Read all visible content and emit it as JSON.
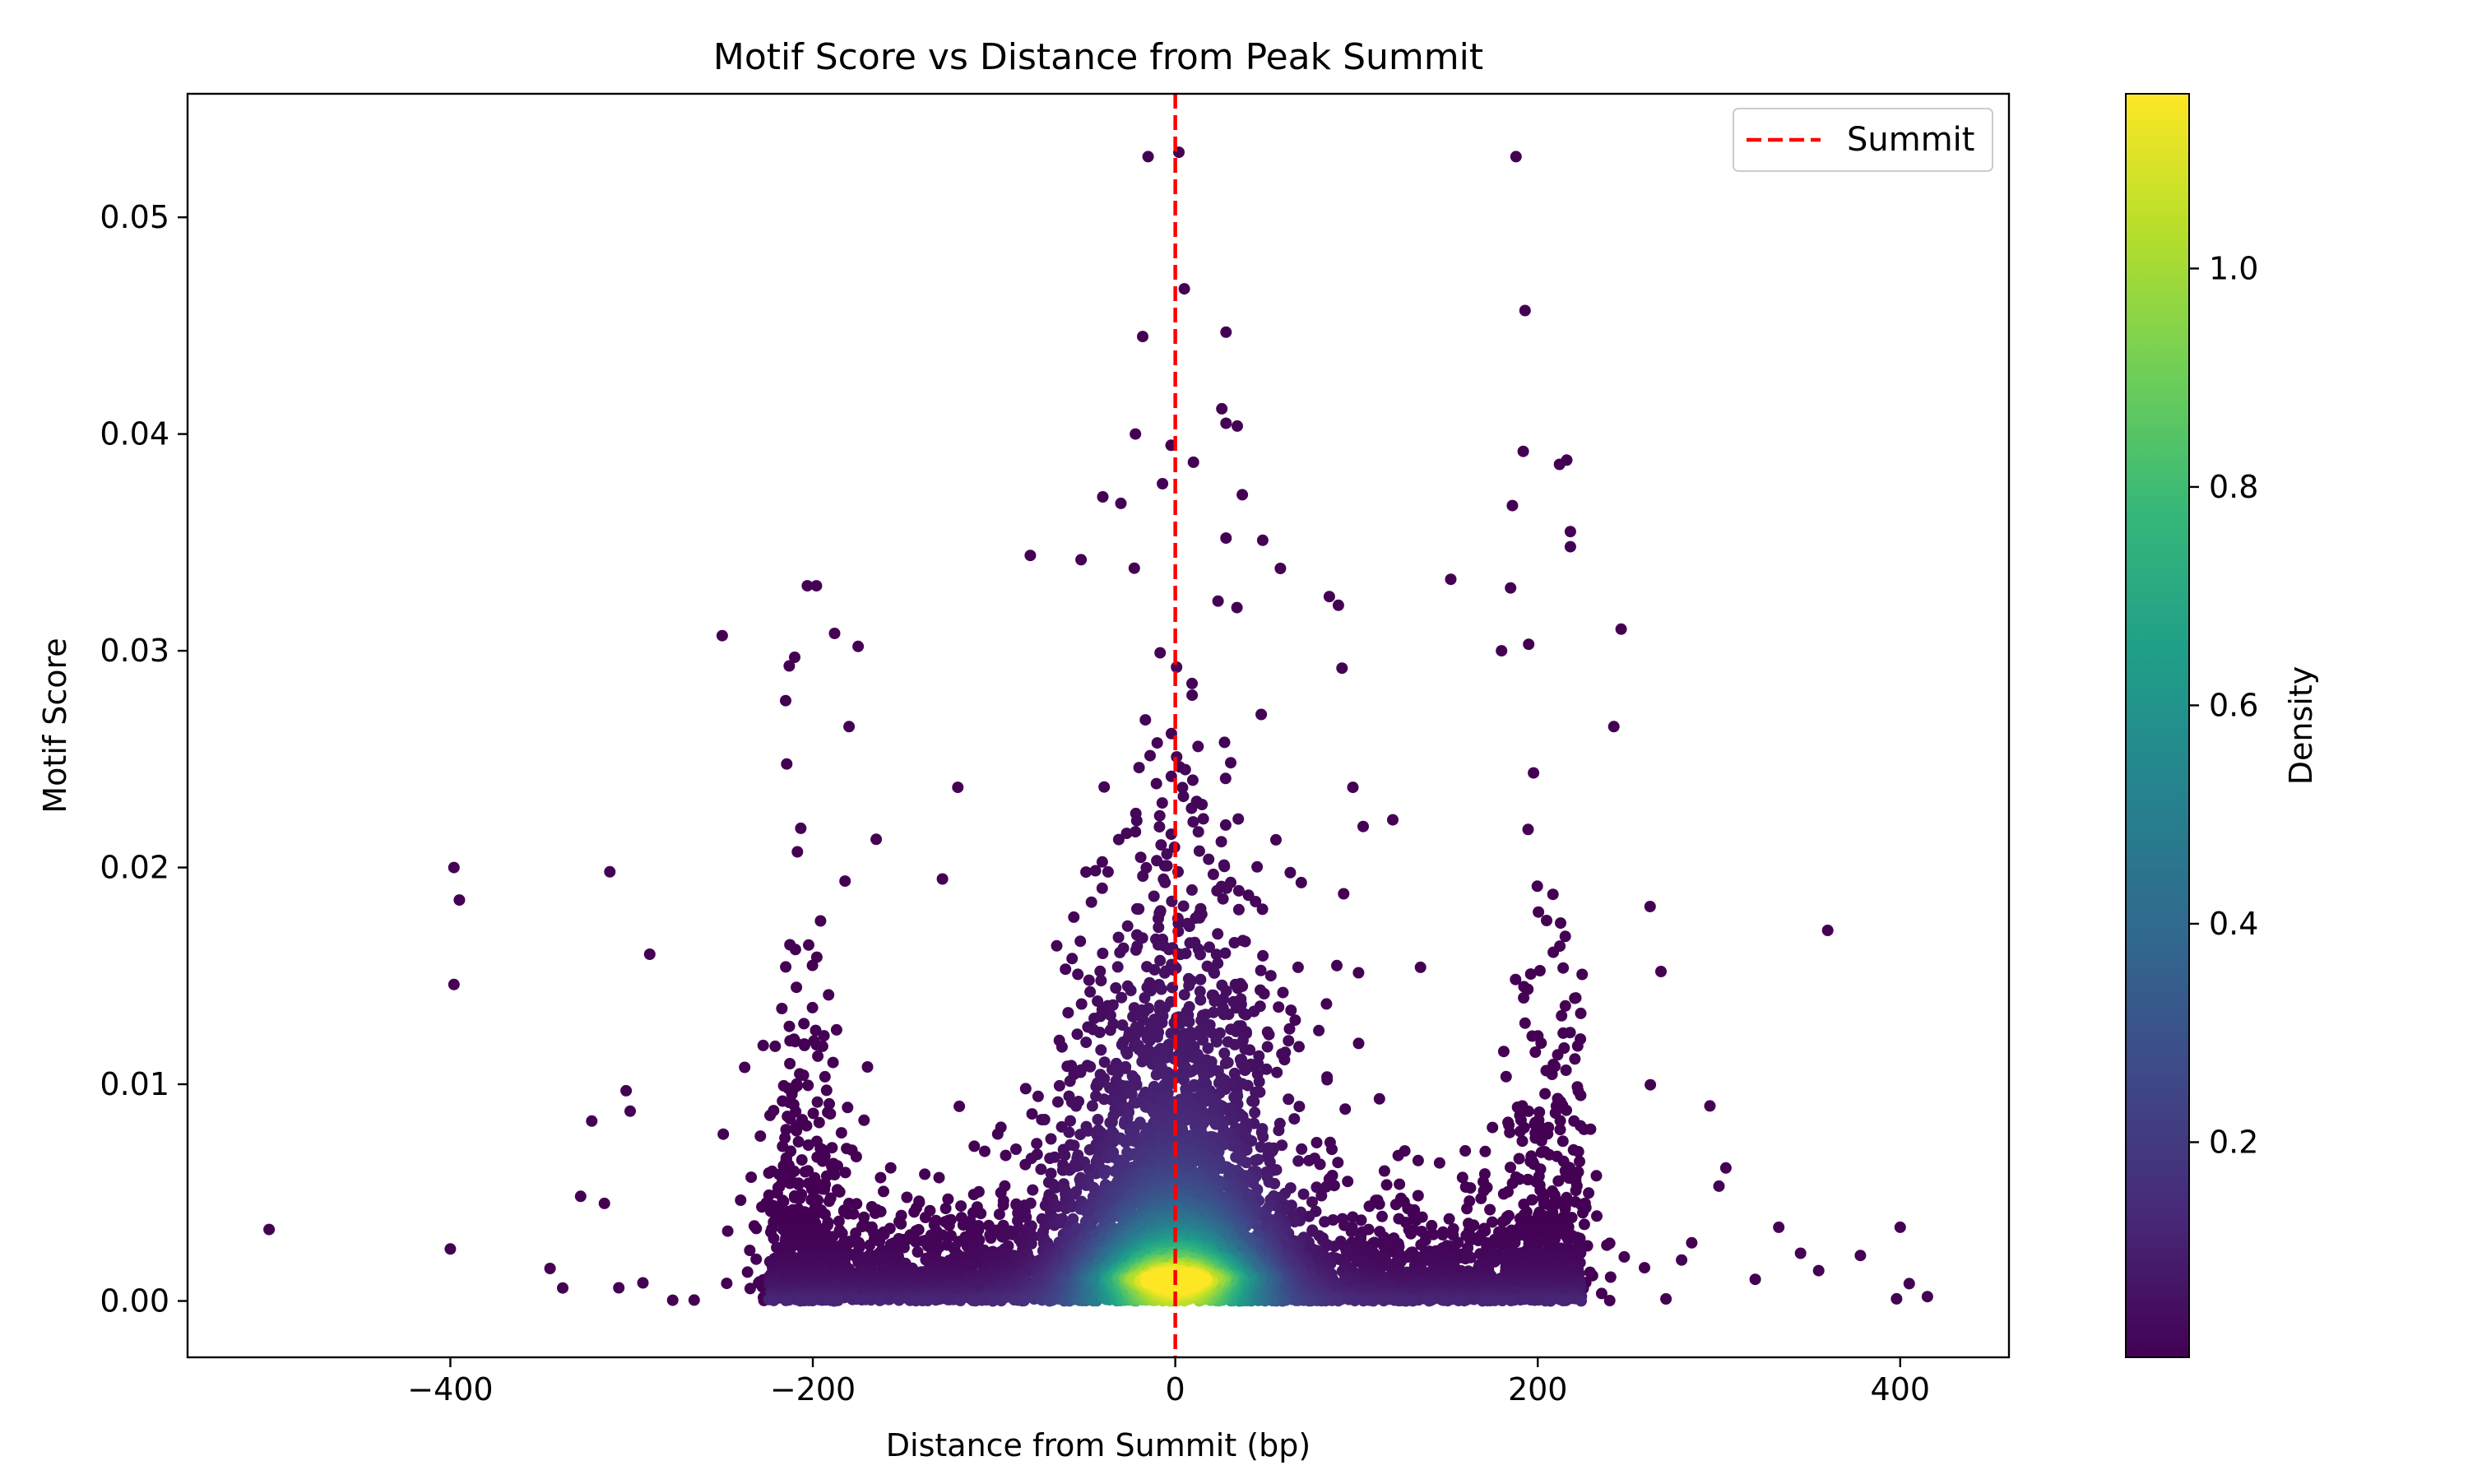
{
  "chart_data": {
    "type": "scatter",
    "title": "Motif Score vs Distance from Peak Summit",
    "xlabel": "Distance from Summit (bp)",
    "ylabel": "Motif Score",
    "xlim": [
      -545,
      460
    ],
    "ylim": [
      -0.0026,
      0.0557
    ],
    "x_ticks": [
      -400,
      -200,
      0,
      200,
      400
    ],
    "x_tick_labels": [
      "−400",
      "−200",
      "0",
      "200",
      "400"
    ],
    "y_ticks": [
      0.0,
      0.01,
      0.02,
      0.03,
      0.04,
      0.05
    ],
    "y_tick_labels": [
      "0.00",
      "0.01",
      "0.02",
      "0.03",
      "0.04",
      "0.05"
    ],
    "grid": false,
    "colormap": "viridis",
    "colorbar": {
      "label": "Density",
      "range": [
        0.003,
        1.16
      ],
      "ticks": [
        0.2,
        0.4,
        0.6,
        0.8,
        1.0
      ],
      "tick_labels": [
        "0.2",
        "0.4",
        "0.6",
        "0.8",
        "1.0"
      ]
    },
    "reference_line": {
      "x": 0,
      "label": "Summit",
      "color": "#ff0000",
      "style": "dashed"
    },
    "legend": {
      "position": "top-right",
      "entries": [
        "Summit"
      ]
    },
    "dense_regions": [
      {
        "x_range": [
          -225,
          225
        ],
        "y_range": [
          0.0,
          0.006
        ],
        "peak_x": 0,
        "peak_y": 0.001,
        "peak_density": 1.16
      },
      {
        "x_range": [
          -60,
          60
        ],
        "y_range": [
          0.0,
          0.03
        ],
        "peak_x": 0,
        "peak_y": 0.005,
        "peak_density": 0.6
      }
    ],
    "notable_points": [
      {
        "x": -500,
        "y": 0.0033
      },
      {
        "x": -400,
        "y": 0.0024
      },
      {
        "x": -398,
        "y": 0.02
      },
      {
        "x": -395,
        "y": 0.0185
      },
      {
        "x": -398,
        "y": 0.0146
      },
      {
        "x": -312,
        "y": 0.0198
      },
      {
        "x": -290,
        "y": 0.016
      },
      {
        "x": -345,
        "y": 0.0015
      },
      {
        "x": -338,
        "y": 0.0006
      },
      {
        "x": -322,
        "y": 0.0083
      },
      {
        "x": -315,
        "y": 0.0045
      },
      {
        "x": -303,
        "y": 0.0097
      },
      {
        "x": -250,
        "y": 0.0307
      },
      {
        "x": -203,
        "y": 0.033
      },
      {
        "x": -198,
        "y": 0.033
      },
      {
        "x": -188,
        "y": 0.0308
      },
      {
        "x": -175,
        "y": 0.0302
      },
      {
        "x": -210,
        "y": 0.0297
      },
      {
        "x": -213,
        "y": 0.0293
      },
      {
        "x": -215,
        "y": 0.0277
      },
      {
        "x": -180,
        "y": 0.0265
      },
      {
        "x": -165,
        "y": 0.0213
      },
      {
        "x": -120,
        "y": 0.0237
      },
      {
        "x": -80,
        "y": 0.0344
      },
      {
        "x": -52,
        "y": 0.0342
      },
      {
        "x": -40,
        "y": 0.0371
      },
      {
        "x": -30,
        "y": 0.0368
      },
      {
        "x": -22,
        "y": 0.04
      },
      {
        "x": -18,
        "y": 0.0445
      },
      {
        "x": -15,
        "y": 0.0528
      },
      {
        "x": 2,
        "y": 0.053
      },
      {
        "x": 5,
        "y": 0.0467
      },
      {
        "x": 28,
        "y": 0.0447
      },
      {
        "x": 28,
        "y": 0.0405
      },
      {
        "x": 10,
        "y": 0.0387
      },
      {
        "x": 37,
        "y": 0.0372
      },
      {
        "x": 28,
        "y": 0.0352
      },
      {
        "x": 58,
        "y": 0.0338
      },
      {
        "x": 85,
        "y": 0.0325
      },
      {
        "x": 90,
        "y": 0.0321
      },
      {
        "x": 92,
        "y": 0.0292
      },
      {
        "x": 98,
        "y": 0.0237
      },
      {
        "x": 120,
        "y": 0.0222
      },
      {
        "x": 152,
        "y": 0.0333
      },
      {
        "x": 188,
        "y": 0.0528
      },
      {
        "x": 193,
        "y": 0.0457
      },
      {
        "x": 192,
        "y": 0.0392
      },
      {
        "x": 212,
        "y": 0.0386
      },
      {
        "x": 216,
        "y": 0.0388
      },
      {
        "x": 186,
        "y": 0.0367
      },
      {
        "x": 218,
        "y": 0.0355
      },
      {
        "x": 218,
        "y": 0.0348
      },
      {
        "x": 185,
        "y": 0.0329
      },
      {
        "x": 195,
        "y": 0.0303
      },
      {
        "x": 180,
        "y": 0.03
      },
      {
        "x": 246,
        "y": 0.031
      },
      {
        "x": 242,
        "y": 0.0265
      },
      {
        "x": 360,
        "y": 0.0171
      },
      {
        "x": 400,
        "y": 0.0034
      },
      {
        "x": 405,
        "y": 0.0008
      },
      {
        "x": 398,
        "y": 0.0001
      },
      {
        "x": 415,
        "y": 0.0002
      },
      {
        "x": 333,
        "y": 0.0034
      },
      {
        "x": 345,
        "y": 0.0022
      },
      {
        "x": 355,
        "y": 0.0014
      },
      {
        "x": 378,
        "y": 0.0021
      },
      {
        "x": 320,
        "y": 0.001
      },
      {
        "x": 295,
        "y": 0.009
      },
      {
        "x": 300,
        "y": 0.0053
      },
      {
        "x": 262,
        "y": 0.0182
      },
      {
        "x": 268,
        "y": 0.0152
      }
    ]
  }
}
